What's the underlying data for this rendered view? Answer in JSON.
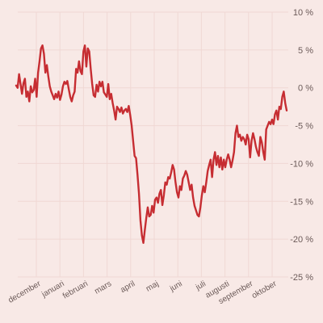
{
  "chart_data": {
    "type": "line",
    "title": "",
    "xlabel": "",
    "ylabel": "",
    "ylim": [
      -25,
      10
    ],
    "y_ticks": [
      10,
      5,
      0,
      -5,
      -10,
      -15,
      -20,
      -25
    ],
    "y_tick_labels": [
      "10 %",
      "5 %",
      "0 %",
      "-5 %",
      "-10 %",
      "-15 %",
      "-20 %",
      "-25 %"
    ],
    "x_tick_labels": [
      "december",
      "januari",
      "februari",
      "mars",
      "april",
      "maj",
      "juni",
      "juli",
      "augusti",
      "september",
      "oktober"
    ],
    "grid": true,
    "legend": "none",
    "colors": {
      "background": "#f8e9e6",
      "line": "#c62d32",
      "grid": "#f0d8d4",
      "text": "#6b5a58"
    },
    "series": [
      {
        "values": [
          0.3,
          0.0,
          1.8,
          0.5,
          -0.8,
          0.6,
          1.2,
          -1.2,
          -0.5,
          -1.8,
          0.2,
          -0.6,
          -0.3,
          1.2,
          -1.2,
          2.0,
          3.5,
          5.2,
          5.6,
          4.5,
          2.0,
          3.0,
          1.5,
          0.2,
          -0.5,
          -1.0,
          -1.5,
          -0.8,
          -1.3,
          -0.5,
          -1.6,
          -0.9,
          0.2,
          0.8,
          0.5,
          0.9,
          -0.2,
          -1.2,
          -1.8,
          -1.0,
          -0.5,
          2.5,
          2.0,
          3.5,
          2.2,
          1.8,
          4.8,
          5.6,
          2.8,
          5.2,
          4.8,
          2.5,
          0.5,
          -1.0,
          -1.2,
          0.4,
          -0.5,
          0.8,
          0.2,
          0.8,
          -0.6,
          -0.9,
          -1.2,
          0.5,
          -1.5,
          -0.8,
          -2.0,
          -3.0,
          -4.2,
          -2.5,
          -2.8,
          -3.2,
          -2.6,
          -3.4,
          -3.0,
          -2.8,
          -3.2,
          -2.4,
          -3.6,
          -5.0,
          -7.0,
          -9.0,
          -9.3,
          -11.5,
          -14.0,
          -17.5,
          -19.5,
          -20.5,
          -18.8,
          -17.2,
          -15.8,
          -17.0,
          -16.8,
          -15.6,
          -16.5,
          -14.8,
          -14.5,
          -15.2,
          -14.0,
          -13.5,
          -15.5,
          -14.2,
          -12.5,
          -12.8,
          -11.8,
          -12.0,
          -11.2,
          -10.2,
          -10.8,
          -12.5,
          -13.8,
          -14.5,
          -13.0,
          -13.5,
          -12.0,
          -11.6,
          -11.0,
          -11.5,
          -12.5,
          -13.5,
          -12.8,
          -14.5,
          -15.6,
          -16.2,
          -16.8,
          -17.0,
          -15.8,
          -14.2,
          -13.0,
          -13.8,
          -12.5,
          -11.0,
          -10.2,
          -9.5,
          -11.8,
          -9.5,
          -8.5,
          -10.2,
          -9.0,
          -10.5,
          -9.2,
          -10.8,
          -9.5,
          -10.5,
          -9.5,
          -8.8,
          -9.5,
          -10.5,
          -9.6,
          -8.5,
          -6.0,
          -5.0,
          -6.5,
          -6.2,
          -7.0,
          -6.5,
          -6.8,
          -7.5,
          -6.2,
          -6.8,
          -9.2,
          -7.0,
          -6.0,
          -6.8,
          -7.8,
          -8.5,
          -9.0,
          -6.5,
          -7.2,
          -8.5,
          -9.5,
          -5.5,
          -5.0,
          -4.5,
          -4.8,
          -4.2,
          -4.8,
          -3.5,
          -3.0,
          -4.2,
          -2.5,
          -2.8,
          -1.2,
          -0.5,
          -2.0,
          -3.0
        ]
      }
    ]
  }
}
